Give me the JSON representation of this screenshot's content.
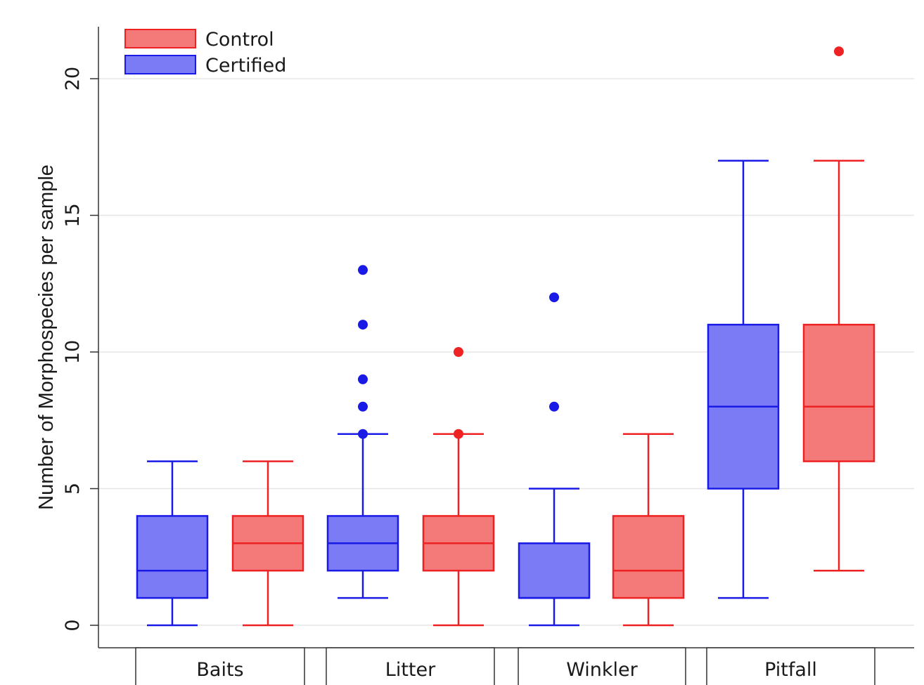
{
  "chart_data": {
    "type": "boxplot",
    "ylabel": "Number of Morphospecies per sample",
    "ylim": [
      -0.9,
      21.9
    ],
    "yticks": [
      0,
      5,
      10,
      15,
      20
    ],
    "grid": true,
    "legend": {
      "placement": "top-left",
      "entries": [
        {
          "name": "Control",
          "color": "#f47a7a",
          "edge": "#ee2222"
        },
        {
          "name": "Certified",
          "color": "#7b7bf5",
          "edge": "#1a1ae6"
        }
      ]
    },
    "groups": [
      {
        "label": "Baits",
        "boxes": [
          {
            "series": "Certified",
            "min": 0,
            "q1": 1,
            "median": 2,
            "q3": 4,
            "max": 6,
            "outliers": []
          },
          {
            "series": "Control",
            "min": 0,
            "q1": 2,
            "median": 3,
            "q3": 4,
            "max": 6,
            "outliers": []
          }
        ]
      },
      {
        "label": "Litter",
        "boxes": [
          {
            "series": "Certified",
            "min": 1,
            "q1": 2,
            "median": 3,
            "q3": 4,
            "max": 7,
            "outliers": [
              7,
              8,
              9,
              11,
              13
            ]
          },
          {
            "series": "Control",
            "min": 0,
            "q1": 2,
            "median": 3,
            "q3": 4,
            "max": 7,
            "outliers": [
              7,
              10
            ]
          }
        ]
      },
      {
        "label": "Winkler",
        "boxes": [
          {
            "series": "Certified",
            "min": 0,
            "q1": 1,
            "median": 1,
            "q3": 3,
            "max": 5,
            "outliers": [
              8,
              12
            ]
          },
          {
            "series": "Control",
            "min": 0,
            "q1": 1,
            "median": 2,
            "q3": 4,
            "max": 7,
            "outliers": []
          }
        ]
      },
      {
        "label": "Pitfall",
        "boxes": [
          {
            "series": "Certified",
            "min": 1,
            "q1": 5,
            "median": 8,
            "q3": 11,
            "max": 17,
            "outliers": []
          },
          {
            "series": "Control",
            "min": 2,
            "q1": 6,
            "median": 8,
            "q3": 11,
            "max": 17,
            "outliers": [
              21
            ]
          }
        ]
      }
    ]
  }
}
